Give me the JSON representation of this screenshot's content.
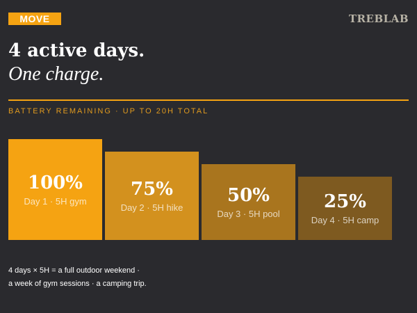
{
  "tag": "MOVE",
  "brand": "TREBLAB",
  "headline": "4 active days.",
  "subline": "One charge.",
  "section_label": "BATTERY REMAINING · UP TO 20H TOTAL",
  "colors": {
    "background": "#2a2a2e",
    "accent": "#f5a312"
  },
  "chart_data": {
    "type": "bar",
    "categories": [
      "Day 1 · 5H gym",
      "Day 2 · 5H hike",
      "Day 3 · 5H pool",
      "Day 4 · 5H camp"
    ],
    "values": [
      100,
      75,
      50,
      25
    ],
    "labels": [
      "100%",
      "75%",
      "50%",
      "25%"
    ],
    "colors": [
      "#f5a312",
      "#d3911e",
      "#a9751e",
      "#7e5a20"
    ],
    "ylim": [
      0,
      100
    ]
  },
  "footnote": {
    "line1": "4 days × 5H = a full outdoor weekend ·",
    "line2": "a week of gym sessions · a camping trip."
  }
}
